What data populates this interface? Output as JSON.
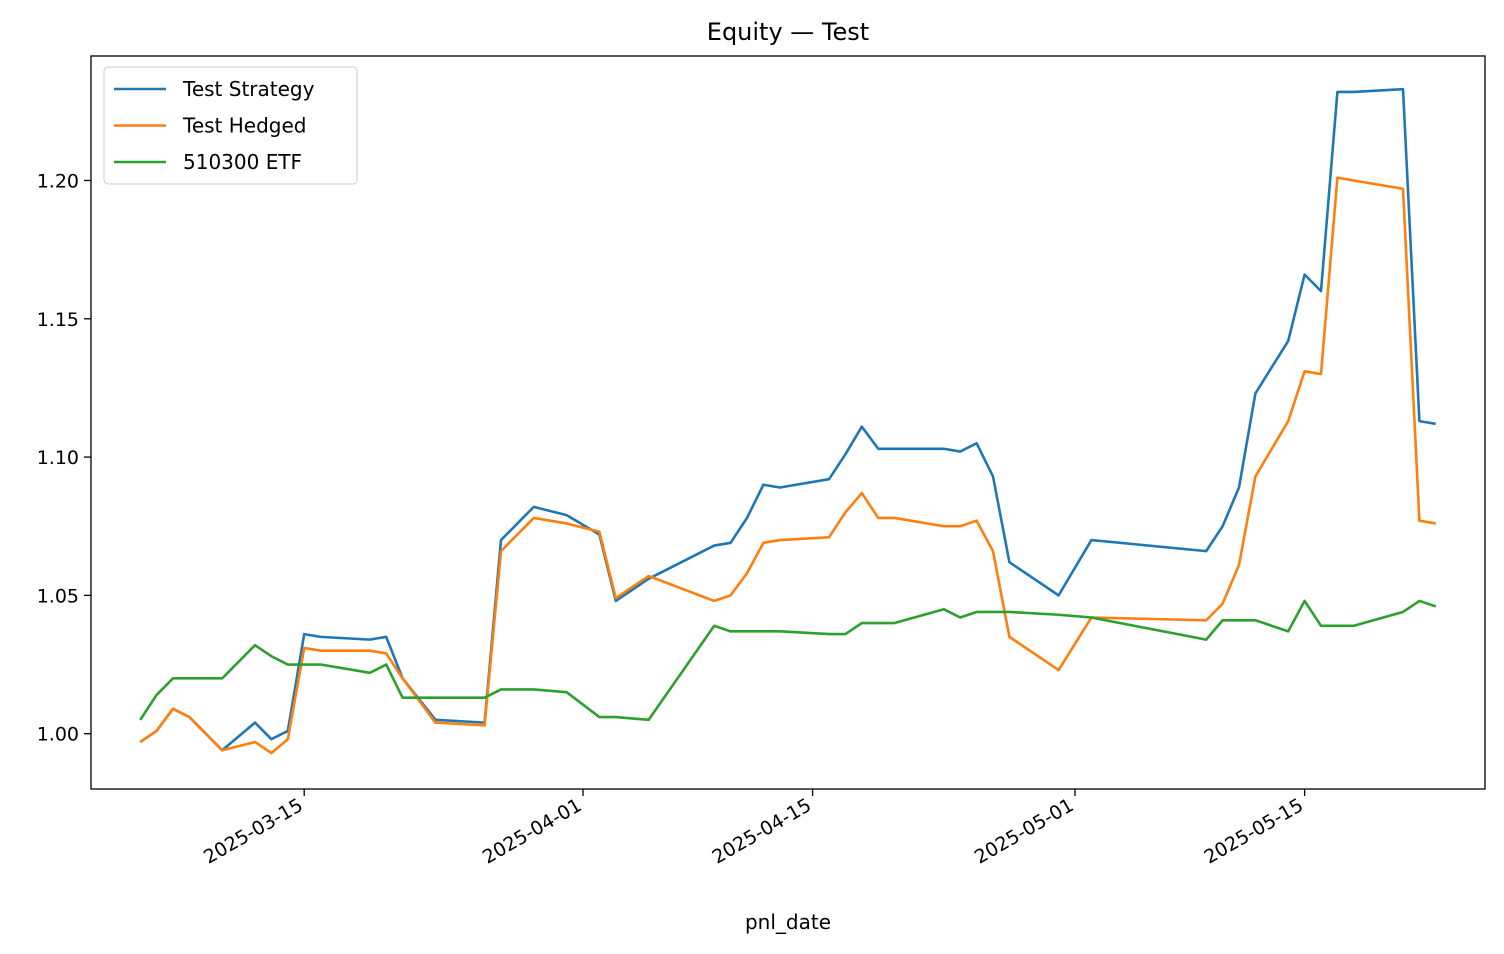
{
  "chart_data": {
    "type": "line",
    "title": "Equity — Test",
    "xlabel": "pnl_date",
    "ylabel": "",
    "x_is_date": true,
    "xlim": [
      "2025-03-02",
      "2025-05-26"
    ],
    "ylim": [
      0.98,
      1.245
    ],
    "x_tick_labels": [
      "2025-03-15",
      "2025-04-01",
      "2025-04-15",
      "2025-05-01",
      "2025-05-15"
    ],
    "y_tick_labels": [
      "1.00",
      "1.05",
      "1.10",
      "1.15",
      "1.20"
    ],
    "y_ticks": [
      1.0,
      1.05,
      1.1,
      1.15,
      1.2
    ],
    "grid": false,
    "legend_position": "upper-left",
    "dates": [
      "2025-03-05",
      "2025-03-06",
      "2025-03-07",
      "2025-03-08",
      "2025-03-10",
      "2025-03-12",
      "2025-03-13",
      "2025-03-14",
      "2025-03-15",
      "2025-03-16",
      "2025-03-19",
      "2025-03-20",
      "2025-03-21",
      "2025-03-23",
      "2025-03-26",
      "2025-03-27",
      "2025-03-29",
      "2025-03-31",
      "2025-04-02",
      "2025-04-03",
      "2025-04-05",
      "2025-04-09",
      "2025-04-10",
      "2025-04-11",
      "2025-04-12",
      "2025-04-13",
      "2025-04-16",
      "2025-04-17",
      "2025-04-18",
      "2025-04-19",
      "2025-04-20",
      "2025-04-23",
      "2025-04-24",
      "2025-04-25",
      "2025-04-26",
      "2025-04-27",
      "2025-04-30",
      "2025-05-02",
      "2025-05-09",
      "2025-05-10",
      "2025-05-11",
      "2025-05-12",
      "2025-05-14",
      "2025-05-15",
      "2025-05-16",
      "2025-05-17",
      "2025-05-18",
      "2025-05-21",
      "2025-05-22",
      "2025-05-23"
    ],
    "series": [
      {
        "name": "Test Strategy",
        "color": "#1f77b4",
        "values": [
          0.997,
          1.001,
          1.009,
          1.006,
          0.994,
          1.004,
          0.998,
          1.001,
          1.036,
          1.035,
          1.034,
          1.035,
          1.02,
          1.005,
          1.004,
          1.07,
          1.082,
          1.079,
          1.072,
          1.048,
          1.056,
          1.068,
          1.069,
          1.078,
          1.09,
          1.089,
          1.092,
          1.101,
          1.111,
          1.103,
          1.103,
          1.103,
          1.102,
          1.105,
          1.093,
          1.062,
          1.05,
          1.07,
          1.066,
          1.075,
          1.089,
          1.123,
          1.142,
          1.166,
          1.16,
          1.232,
          1.232,
          1.233,
          1.113,
          1.112
        ]
      },
      {
        "name": "Test Hedged",
        "color": "#ff7f0e",
        "values": [
          0.997,
          1.001,
          1.009,
          1.006,
          0.994,
          0.997,
          0.993,
          0.998,
          1.031,
          1.03,
          1.03,
          1.029,
          1.02,
          1.004,
          1.003,
          1.066,
          1.078,
          1.076,
          1.073,
          1.049,
          1.057,
          1.048,
          1.05,
          1.058,
          1.069,
          1.07,
          1.071,
          1.08,
          1.087,
          1.078,
          1.078,
          1.075,
          1.075,
          1.077,
          1.066,
          1.035,
          1.023,
          1.042,
          1.041,
          1.047,
          1.061,
          1.093,
          1.113,
          1.131,
          1.13,
          1.201,
          1.2,
          1.197,
          1.077,
          1.076
        ]
      },
      {
        "name": "510300 ETF",
        "color": "#2ca02c",
        "values": [
          1.005,
          1.014,
          1.02,
          1.02,
          1.02,
          1.032,
          1.028,
          1.025,
          1.025,
          1.025,
          1.022,
          1.025,
          1.013,
          1.013,
          1.013,
          1.016,
          1.016,
          1.015,
          1.006,
          1.006,
          1.005,
          1.039,
          1.037,
          1.037,
          1.037,
          1.037,
          1.036,
          1.036,
          1.04,
          1.04,
          1.04,
          1.045,
          1.042,
          1.044,
          1.044,
          1.044,
          1.043,
          1.042,
          1.034,
          1.041,
          1.041,
          1.041,
          1.037,
          1.048,
          1.039,
          1.039,
          1.039,
          1.044,
          1.048,
          1.046
        ]
      }
    ]
  }
}
